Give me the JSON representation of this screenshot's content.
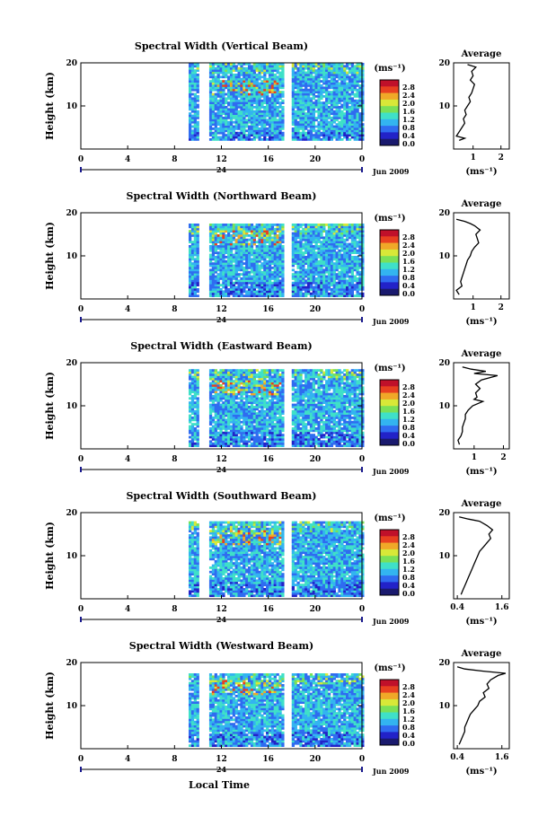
{
  "figure": {
    "xlabel": "Local Time",
    "date_label": "Jun 2009",
    "day_label": "24",
    "ylabel": "Height (km)",
    "colorbar_unit": "(ms⁻¹)",
    "average_title": "Average",
    "average_xlabel": "(ms⁻¹)"
  },
  "chart_data": [
    {
      "type": "heatmap",
      "title": "Spectral Width (Vertical Beam)",
      "xlim": [
        0,
        24
      ],
      "x_ticks": [
        "0",
        "4",
        "8",
        "12",
        "16",
        "20",
        "0"
      ],
      "ylim": [
        0,
        20
      ],
      "y_ticks": [
        "10",
        "20"
      ],
      "colorbar": {
        "ticks": [
          "2.8",
          "2.4",
          "2.0",
          "1.6",
          "1.2",
          "0.8",
          "0.4",
          "0.0"
        ]
      },
      "data_time_range": [
        9.2,
        24
      ],
      "gaps": [
        [
          10.3,
          10.8
        ],
        [
          17.4,
          17.8
        ]
      ],
      "height_range": [
        2,
        20
      ],
      "average": {
        "title": "Average",
        "x_ticks": [
          "1",
          "2"
        ],
        "xlim": [
          0.3,
          2.3
        ],
        "y_ticks": [
          "10",
          "20"
        ],
        "ylim": [
          0,
          20
        ],
        "profile": [
          [
            2,
            0.5
          ],
          [
            2.5,
            0.7
          ],
          [
            3,
            0.4
          ],
          [
            4,
            0.5
          ],
          [
            5,
            0.6
          ],
          [
            6,
            0.7
          ],
          [
            7,
            0.65
          ],
          [
            8,
            0.75
          ],
          [
            9,
            0.7
          ],
          [
            10,
            0.8
          ],
          [
            11,
            0.9
          ],
          [
            12,
            0.85
          ],
          [
            13,
            0.95
          ],
          [
            14,
            1.0
          ],
          [
            15,
            1.05
          ],
          [
            16,
            0.9
          ],
          [
            17,
            1.0
          ],
          [
            18,
            0.95
          ],
          [
            19,
            1.1
          ],
          [
            19.6,
            0.8
          ]
        ]
      }
    },
    {
      "type": "heatmap",
      "title": "Spectral Width (Northward Beam)",
      "xlim": [
        0,
        24
      ],
      "x_ticks": [
        "0",
        "4",
        "8",
        "12",
        "16",
        "20",
        "0"
      ],
      "ylim": [
        0,
        20
      ],
      "y_ticks": [
        "10",
        "20"
      ],
      "colorbar": {
        "ticks": [
          "2.8",
          "2.4",
          "2.0",
          "1.6",
          "1.2",
          "0.8",
          "0.4",
          "0.0"
        ]
      },
      "data_time_range": [
        9.2,
        24
      ],
      "gaps": [
        [
          10.3,
          10.8
        ],
        [
          17.4,
          17.8
        ]
      ],
      "height_range": [
        0.5,
        17.5
      ],
      "average": {
        "title": "Average",
        "x_ticks": [
          "1",
          "2"
        ],
        "xlim": [
          0.3,
          2.3
        ],
        "y_ticks": [
          "10",
          "20"
        ],
        "ylim": [
          0,
          20
        ],
        "profile": [
          [
            1,
            0.5
          ],
          [
            2,
            0.4
          ],
          [
            3,
            0.6
          ],
          [
            4,
            0.55
          ],
          [
            5,
            0.6
          ],
          [
            6,
            0.65
          ],
          [
            7,
            0.7
          ],
          [
            8,
            0.75
          ],
          [
            9,
            0.8
          ],
          [
            10,
            0.9
          ],
          [
            11,
            0.95
          ],
          [
            12,
            1.05
          ],
          [
            13,
            1.2
          ],
          [
            14,
            1.15
          ],
          [
            15,
            1.1
          ],
          [
            16,
            1.25
          ],
          [
            17,
            1.05
          ],
          [
            17.5,
            0.9
          ],
          [
            18,
            0.7
          ],
          [
            18.5,
            0.4
          ]
        ]
      }
    },
    {
      "type": "heatmap",
      "title": "Spectral Width (Eastward Beam)",
      "xlim": [
        0,
        24
      ],
      "x_ticks": [
        "0",
        "4",
        "8",
        "12",
        "16",
        "20",
        "0"
      ],
      "ylim": [
        0,
        20
      ],
      "y_ticks": [
        "10",
        "20"
      ],
      "colorbar": {
        "ticks": [
          "2.8",
          "2.4",
          "2.0",
          "1.6",
          "1.2",
          "0.8",
          "0.4",
          "0.0"
        ]
      },
      "data_time_range": [
        9.2,
        24
      ],
      "gaps": [
        [
          10.3,
          10.8
        ],
        [
          17.4,
          17.8
        ]
      ],
      "height_range": [
        0.5,
        18.5
      ],
      "average": {
        "title": "Average",
        "x_ticks": [
          "1",
          "2"
        ],
        "xlim": [
          0.3,
          2.2
        ],
        "y_ticks": [
          "10",
          "20"
        ],
        "ylim": [
          0,
          20
        ],
        "profile": [
          [
            1,
            0.5
          ],
          [
            2,
            0.45
          ],
          [
            3,
            0.55
          ],
          [
            4,
            0.6
          ],
          [
            5,
            0.6
          ],
          [
            6,
            0.65
          ],
          [
            7,
            0.7
          ],
          [
            8,
            0.7
          ],
          [
            9,
            0.8
          ],
          [
            10,
            0.95
          ],
          [
            11,
            1.3
          ],
          [
            11.5,
            1.0
          ],
          [
            12,
            1.1
          ],
          [
            13,
            1.05
          ],
          [
            14,
            1.2
          ],
          [
            15,
            1.05
          ],
          [
            16,
            1.25
          ],
          [
            17,
            1.8
          ],
          [
            17.5,
            1.0
          ],
          [
            18,
            1.4
          ],
          [
            18.5,
            0.9
          ],
          [
            19,
            0.6
          ]
        ]
      }
    },
    {
      "type": "heatmap",
      "title": "Spectral Width (Southward Beam)",
      "xlim": [
        0,
        24
      ],
      "x_ticks": [
        "0",
        "4",
        "8",
        "12",
        "16",
        "20",
        "0"
      ],
      "ylim": [
        0,
        20
      ],
      "y_ticks": [
        "10",
        "20"
      ],
      "colorbar": {
        "ticks": [
          "2.8",
          "2.4",
          "2.0",
          "1.6",
          "1.2",
          "0.8",
          "0.4",
          "0.0"
        ]
      },
      "data_time_range": [
        9.2,
        24
      ],
      "gaps": [
        [
          10.3,
          10.8
        ],
        [
          17.4,
          17.8
        ]
      ],
      "height_range": [
        0.5,
        18.0
      ],
      "average": {
        "title": "Average",
        "x_ticks": [
          "0.4",
          "1.6"
        ],
        "xlim": [
          0.3,
          1.8
        ],
        "y_ticks": [
          "10",
          "20"
        ],
        "ylim": [
          0,
          20
        ],
        "profile": [
          [
            1,
            0.5
          ],
          [
            2,
            0.55
          ],
          [
            3,
            0.6
          ],
          [
            4,
            0.65
          ],
          [
            5,
            0.7
          ],
          [
            6,
            0.75
          ],
          [
            7,
            0.8
          ],
          [
            8,
            0.85
          ],
          [
            9,
            0.9
          ],
          [
            10,
            0.95
          ],
          [
            11,
            1.0
          ],
          [
            12,
            1.1
          ],
          [
            13,
            1.2
          ],
          [
            14,
            1.3
          ],
          [
            15,
            1.25
          ],
          [
            16,
            1.35
          ],
          [
            17,
            1.2
          ],
          [
            18,
            1.0
          ],
          [
            18.5,
            0.7
          ],
          [
            19,
            0.45
          ]
        ]
      }
    },
    {
      "type": "heatmap",
      "title": "Spectral Width (Westward Beam)",
      "xlim": [
        0,
        24
      ],
      "x_ticks": [
        "0",
        "4",
        "8",
        "12",
        "16",
        "20",
        "0"
      ],
      "ylim": [
        0,
        20
      ],
      "y_ticks": [
        "10",
        "20"
      ],
      "colorbar": {
        "ticks": [
          "2.8",
          "2.4",
          "2.0",
          "1.6",
          "1.2",
          "0.8",
          "0.4",
          "0.0"
        ]
      },
      "data_time_range": [
        9.2,
        24
      ],
      "gaps": [
        [
          10.3,
          10.8
        ],
        [
          17.4,
          17.8
        ]
      ],
      "height_range": [
        0.5,
        17.5
      ],
      "average": {
        "title": "Average",
        "x_ticks": [
          "0.4",
          "1.6"
        ],
        "xlim": [
          0.3,
          1.8
        ],
        "y_ticks": [
          "10",
          "20"
        ],
        "ylim": [
          0,
          20
        ],
        "profile": [
          [
            1,
            0.45
          ],
          [
            2,
            0.5
          ],
          [
            3,
            0.55
          ],
          [
            4,
            0.6
          ],
          [
            5,
            0.6
          ],
          [
            6,
            0.65
          ],
          [
            7,
            0.7
          ],
          [
            8,
            0.75
          ],
          [
            9,
            0.85
          ],
          [
            10,
            0.95
          ],
          [
            11,
            1.0
          ],
          [
            12,
            1.15
          ],
          [
            13,
            1.1
          ],
          [
            14,
            1.25
          ],
          [
            15,
            1.2
          ],
          [
            16,
            1.3
          ],
          [
            17,
            1.5
          ],
          [
            17.5,
            1.7
          ],
          [
            18,
            1.1
          ],
          [
            18.5,
            0.6
          ],
          [
            19,
            0.4
          ]
        ]
      }
    }
  ]
}
